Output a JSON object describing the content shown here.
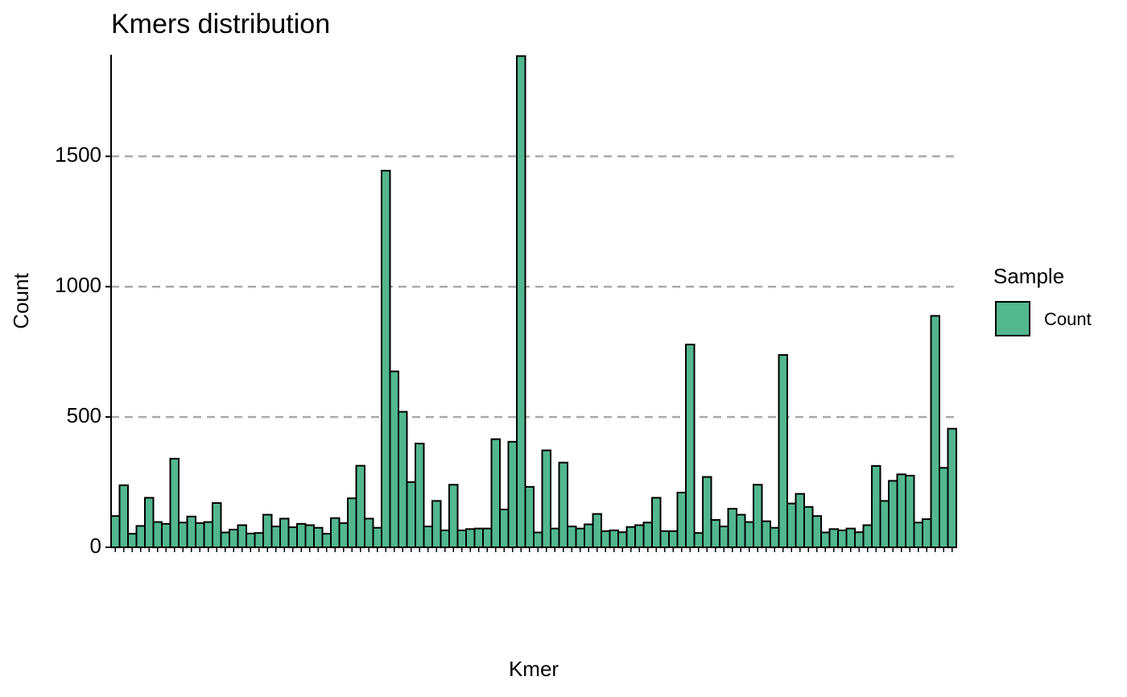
{
  "chart_data": {
    "type": "bar",
    "title": "Kmers distribution",
    "x_label": "Kmer",
    "y_label": "Count",
    "legend_title": "Sample",
    "legend_position": "right",
    "categories": [
      null,
      null,
      null,
      null,
      null,
      null,
      null,
      null,
      null,
      null,
      null,
      null,
      null,
      null,
      null,
      null,
      null,
      null,
      null,
      null,
      null,
      null,
      null,
      null,
      null,
      null,
      null,
      null,
      null,
      null,
      null,
      null,
      null,
      null,
      null,
      null,
      null,
      null,
      null,
      null,
      null,
      null,
      null,
      null,
      null,
      null,
      null,
      null,
      null,
      null,
      null,
      null,
      null,
      null,
      null,
      null,
      null,
      null,
      null,
      null,
      null,
      null,
      null,
      null,
      null,
      null,
      null,
      null,
      null,
      null,
      null,
      null,
      null,
      null,
      null,
      null,
      null,
      null,
      null,
      null,
      null,
      null,
      null,
      null,
      null,
      null,
      null,
      null,
      null,
      null,
      null,
      null,
      null,
      null,
      null,
      null,
      null,
      null,
      null,
      null
    ],
    "series": [
      {
        "name": "Count",
        "color": "#52b78f",
        "values": [
          120,
          238,
          52,
          82,
          190,
          97,
          90,
          340,
          95,
          118,
          93,
          97,
          170,
          57,
          68,
          85,
          53,
          55,
          125,
          80,
          110,
          77,
          90,
          85,
          75,
          52,
          112,
          93,
          188,
          313,
          110,
          75,
          1445,
          675,
          520,
          250,
          398,
          80,
          178,
          65,
          240,
          65,
          70,
          72,
          72,
          415,
          145,
          405,
          1885,
          232,
          57,
          372,
          72,
          325,
          80,
          72,
          88,
          128,
          62,
          65,
          58,
          78,
          85,
          95,
          190,
          62,
          62,
          210,
          778,
          55,
          270,
          105,
          80,
          148,
          125,
          97,
          240,
          100,
          75,
          738,
          168,
          205,
          155,
          120,
          57,
          70,
          65,
          72,
          58,
          85,
          312,
          178,
          255,
          280,
          275,
          95,
          108,
          888,
          305,
          455
        ]
      }
    ],
    "ylim": [
      0,
      1890
    ],
    "yticks": [
      0,
      500,
      1000,
      1500
    ],
    "grid": true
  }
}
